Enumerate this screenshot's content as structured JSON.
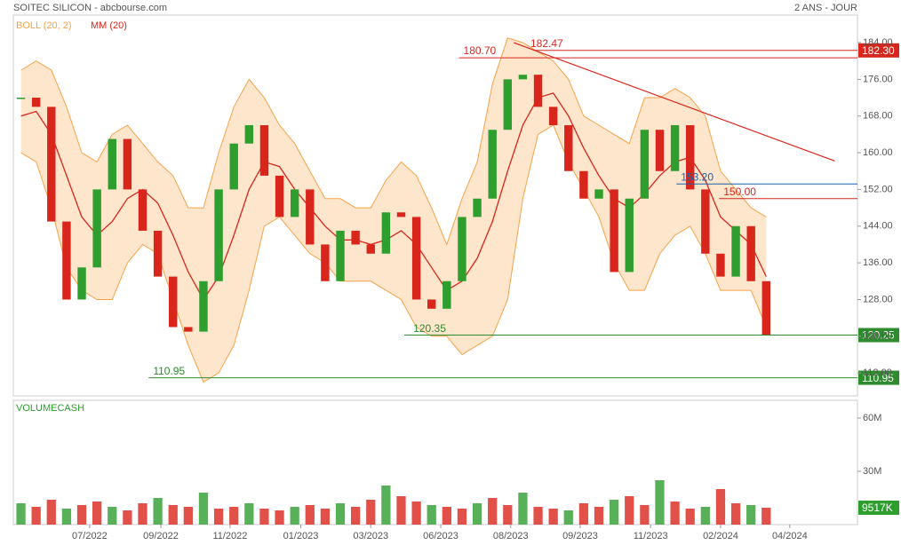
{
  "chart_data": [
    {
      "type": "candles",
      "title": "SOITEC SILICON - abcbourse.com",
      "subtitle": "2 ANS - JOUR",
      "x": [
        0,
        1,
        2,
        3,
        4,
        5,
        6,
        7,
        8,
        9,
        10,
        11,
        12,
        13,
        14,
        15,
        16,
        17,
        18,
        19,
        20,
        21,
        22,
        23,
        24,
        25,
        26,
        27,
        28,
        29,
        30,
        31,
        32,
        33,
        34,
        35,
        36,
        37,
        38,
        39,
        40,
        41,
        42,
        43,
        44,
        45,
        46,
        47,
        48,
        49
      ],
      "values": [
        172,
        170,
        145,
        128,
        135,
        152,
        163,
        152,
        143,
        133,
        122,
        121,
        132,
        152,
        162,
        166,
        155,
        146,
        152,
        140,
        132,
        143,
        140,
        138,
        147,
        146,
        128,
        126,
        132,
        146,
        150,
        165,
        176,
        177,
        170,
        166,
        156,
        150,
        152,
        134,
        150,
        165,
        156,
        166,
        152,
        138,
        133,
        144,
        132,
        120.25
      ],
      "up_color": "#2e9e2e",
      "down_color": "#d9261c",
      "bands": {
        "name": "BOLL (20, 2)",
        "color": "#f5a34a",
        "fill": "#fde6cc",
        "upper": [
          178,
          180,
          178,
          170,
          160,
          158,
          164,
          166,
          162,
          158,
          155,
          148,
          148,
          160,
          170,
          176,
          172,
          166,
          162,
          156,
          150,
          150,
          148,
          148,
          154,
          158,
          155,
          148,
          140,
          150,
          158,
          175,
          185,
          184,
          182,
          180,
          176,
          168,
          166,
          164,
          162,
          172,
          172,
          174,
          172,
          168,
          156,
          152,
          148,
          146
        ],
        "lower": [
          160,
          158,
          148,
          135,
          130,
          128,
          128,
          136,
          140,
          138,
          128,
          118,
          110,
          112,
          118,
          130,
          144,
          146,
          142,
          138,
          136,
          132,
          132,
          132,
          130,
          128,
          122,
          120,
          120,
          116,
          118,
          120,
          128,
          150,
          164,
          166,
          158,
          152,
          146,
          136,
          130,
          130,
          138,
          142,
          144,
          138,
          130,
          130,
          130,
          122
        ]
      },
      "series": [
        {
          "name": "MM (20)",
          "color": "#d9261c",
          "values": [
            168,
            169,
            164,
            155,
            146,
            142,
            145,
            150,
            152,
            149,
            142,
            134,
            128,
            133,
            142,
            152,
            158,
            157,
            152,
            148,
            144,
            141,
            141,
            140,
            141,
            143,
            140,
            135,
            130,
            132,
            137,
            145,
            156,
            166,
            172,
            173,
            168,
            161,
            155,
            150,
            148,
            151,
            155,
            158,
            159,
            154,
            146,
            143,
            140,
            133
          ]
        }
      ],
      "levels": [
        {
          "value": 182.3,
          "label": "182.30",
          "color": "#d9261c",
          "start": 33.7,
          "badge": true
        },
        {
          "value": 180.7,
          "label": "180.70",
          "color": "#d9261c",
          "start": 28.8,
          "badge": false
        },
        {
          "value": 153.2,
          "label": "153.20",
          "color": "#1f5fa8",
          "start": 43.1,
          "badge": false
        },
        {
          "value": 150,
          "label": "150.00",
          "color": "#d9261c",
          "start": 45.9,
          "badge": false
        },
        {
          "value": 120.25,
          "label": "120.25",
          "color": "#2e8b2e",
          "start": 25.2,
          "badge": true
        },
        {
          "value": 110.95,
          "label": "110.95",
          "color": "#2e8b2e",
          "start": 8.4,
          "badge": true
        }
      ],
      "annotations": [
        {
          "x": 33.5,
          "y": 182.47,
          "label": "182.47",
          "color": "#d9261c"
        },
        {
          "x": 25.8,
          "y": 120.35,
          "label": "120.35",
          "color": "#2e8b2e"
        }
      ],
      "trendline": {
        "color": "#d9261c",
        "x": [
          32.4,
          53.5
        ],
        "y": [
          184,
          158.2
        ]
      },
      "xlim": [
        -0.5,
        55
      ],
      "ylim": [
        107,
        190
      ],
      "yticks": [
        {
          "value": 112,
          "label": "112.00"
        },
        {
          "value": 120,
          "label": "120.00"
        },
        {
          "value": 128,
          "label": "128.00"
        },
        {
          "value": 136,
          "label": "136.00"
        },
        {
          "value": 144,
          "label": "144.00"
        },
        {
          "value": 152,
          "label": "152.00"
        },
        {
          "value": 160,
          "label": "160.00"
        },
        {
          "value": 168,
          "label": "168.00"
        },
        {
          "value": 176,
          "label": "176.00"
        },
        {
          "value": 184,
          "label": "184.00"
        }
      ]
    },
    {
      "type": "bar",
      "title": "VOLUMECASH",
      "x": [
        0,
        1,
        2,
        3,
        4,
        5,
        6,
        7,
        8,
        9,
        10,
        11,
        12,
        13,
        14,
        15,
        16,
        17,
        18,
        19,
        20,
        21,
        22,
        23,
        24,
        25,
        26,
        27,
        28,
        29,
        30,
        31,
        32,
        33,
        34,
        35,
        36,
        37,
        38,
        39,
        40,
        41,
        42,
        43,
        44,
        45,
        46,
        47,
        48,
        49
      ],
      "values": [
        12,
        10,
        14,
        9,
        11,
        13,
        10,
        8,
        12,
        15,
        11,
        10,
        18,
        9,
        10,
        12,
        9,
        8,
        10,
        11,
        9,
        12,
        10,
        14,
        22,
        16,
        13,
        11,
        10,
        9,
        12,
        15,
        11,
        18,
        10,
        9,
        8,
        12,
        10,
        14,
        16,
        11,
        25,
        13,
        9,
        10,
        20,
        12,
        11,
        9.517
      ],
      "value_labels": [
        null,
        null,
        null,
        null,
        null,
        null,
        null,
        null,
        null,
        null,
        null,
        null,
        null,
        null,
        null,
        null,
        null,
        null,
        null,
        null,
        null,
        null,
        null,
        null,
        null,
        null,
        null,
        null,
        null,
        null,
        null,
        null,
        null,
        null,
        null,
        null,
        null,
        null,
        null,
        null,
        null,
        null,
        null,
        null,
        null,
        null,
        null,
        null,
        null,
        "9517K"
      ],
      "color": "#d9261c",
      "badge_color": "#2e9e2e",
      "xlim": [
        -0.5,
        55
      ],
      "ylim": [
        0,
        70
      ],
      "yticks": [
        {
          "value": 30,
          "label": "30M"
        },
        {
          "value": 60,
          "label": "60M"
        }
      ],
      "xticks": [
        {
          "value": 4.52,
          "label": "07/2022"
        },
        {
          "value": 9.2,
          "label": "09/2022"
        },
        {
          "value": 13.75,
          "label": "11/2022"
        },
        {
          "value": 18.4,
          "label": "01/2023"
        },
        {
          "value": 23.0,
          "label": "03/2023"
        },
        {
          "value": 27.6,
          "label": "06/2023"
        },
        {
          "value": 32.2,
          "label": "08/2023"
        },
        {
          "value": 36.77,
          "label": "09/2023"
        },
        {
          "value": 41.4,
          "label": "11/2023"
        },
        {
          "value": 46.0,
          "label": "02/2024"
        },
        {
          "value": 50.55,
          "label": "04/2024"
        }
      ]
    }
  ]
}
